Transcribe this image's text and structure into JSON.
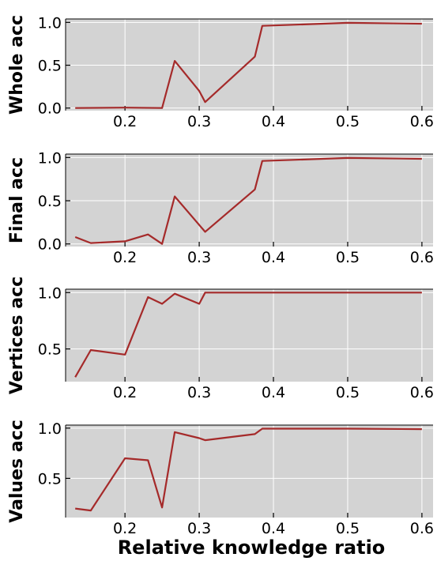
{
  "figure": {
    "xlabel": "Relative knowledge ratio",
    "line_color": "#a52a2a",
    "background_color": "#d3d3d3",
    "grid_color": "#ffffff"
  },
  "chart_data": [
    {
      "type": "line",
      "ylabel": "Whole acc",
      "xlim": [
        0.12,
        0.615
      ],
      "ylim": [
        -0.03,
        1.04
      ],
      "xticks": [
        0.2,
        0.3,
        0.4,
        0.5,
        0.6
      ],
      "xtick_labels": [
        "0.2",
        "0.3",
        "0.4",
        "0.5",
        "0.6"
      ],
      "yticks": [
        0.0,
        0.5,
        1.0
      ],
      "ytick_labels": [
        "0.0",
        "0.5",
        "1.0"
      ],
      "grid": true,
      "series": [
        {
          "x": [
            0.133,
            0.2,
            0.25,
            0.267,
            0.3,
            0.308,
            0.375,
            0.385,
            0.5,
            0.6
          ],
          "y": [
            0.0,
            0.005,
            0.0,
            0.55,
            0.2,
            0.07,
            0.6,
            0.96,
            0.995,
            0.985
          ]
        }
      ]
    },
    {
      "type": "line",
      "ylabel": "Final acc",
      "xlim": [
        0.12,
        0.615
      ],
      "ylim": [
        -0.03,
        1.04
      ],
      "xticks": [
        0.2,
        0.3,
        0.4,
        0.5,
        0.6
      ],
      "xtick_labels": [
        "0.2",
        "0.3",
        "0.4",
        "0.5",
        "0.6"
      ],
      "yticks": [
        0.0,
        0.5,
        1.0
      ],
      "ytick_labels": [
        "0.0",
        "0.5",
        "1.0"
      ],
      "grid": true,
      "series": [
        {
          "x": [
            0.133,
            0.154,
            0.2,
            0.231,
            0.25,
            0.267,
            0.308,
            0.375,
            0.385,
            0.5,
            0.6
          ],
          "y": [
            0.08,
            0.01,
            0.03,
            0.11,
            0.0,
            0.55,
            0.14,
            0.63,
            0.96,
            0.995,
            0.985
          ]
        }
      ]
    },
    {
      "type": "line",
      "ylabel": "Vertices acc",
      "xlim": [
        0.12,
        0.615
      ],
      "ylim": [
        0.21,
        1.03
      ],
      "xticks": [
        0.2,
        0.3,
        0.4,
        0.5,
        0.6
      ],
      "xtick_labels": [
        "0.2",
        "0.3",
        "0.4",
        "0.5",
        "0.6"
      ],
      "yticks": [
        0.5,
        1.0
      ],
      "ytick_labels": [
        "0.5",
        "1.0"
      ],
      "grid": true,
      "series": [
        {
          "x": [
            0.133,
            0.154,
            0.2,
            0.231,
            0.25,
            0.267,
            0.3,
            0.308,
            0.385,
            0.5,
            0.6
          ],
          "y": [
            0.25,
            0.49,
            0.45,
            0.96,
            0.9,
            0.99,
            0.9,
            1.0,
            1.0,
            1.0,
            1.0
          ]
        }
      ]
    },
    {
      "type": "line",
      "ylabel": "Values acc",
      "xlim": [
        0.12,
        0.615
      ],
      "ylim": [
        0.11,
        1.03
      ],
      "xticks": [
        0.2,
        0.3,
        0.4,
        0.5,
        0.6
      ],
      "xtick_labels": [
        "0.2",
        "0.3",
        "0.4",
        "0.5",
        "0.6"
      ],
      "yticks": [
        0.5,
        1.0
      ],
      "ytick_labels": [
        "0.5",
        "1.0"
      ],
      "grid": true,
      "series": [
        {
          "x": [
            0.133,
            0.154,
            0.2,
            0.231,
            0.25,
            0.267,
            0.3,
            0.308,
            0.375,
            0.385,
            0.5,
            0.6
          ],
          "y": [
            0.2,
            0.18,
            0.7,
            0.68,
            0.21,
            0.96,
            0.9,
            0.88,
            0.94,
            0.995,
            0.995,
            0.99
          ]
        }
      ]
    }
  ]
}
